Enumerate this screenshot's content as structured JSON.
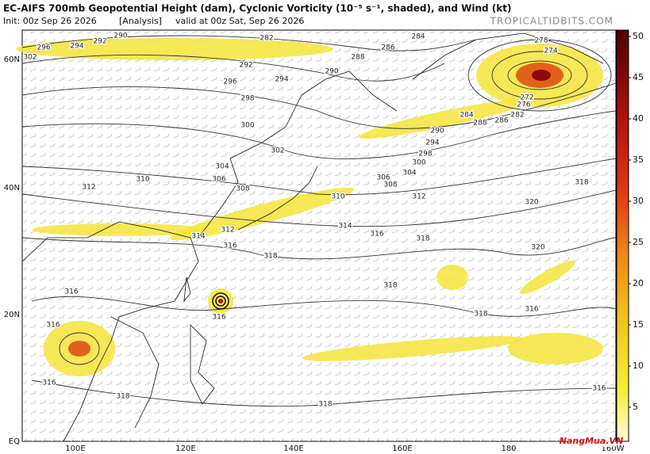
{
  "header": {
    "title": "EC-AIFS 700mb Geopotential Height (dam), Cyclonic Vorticity (10⁻⁵ s⁻¹, shaded), and Wind (kt)",
    "init": "Init: 00z Sep 26 2026",
    "run": "[Analysis]",
    "valid": "valid at 00z Sat, Sep 26 2026",
    "site": "TROPICALTIDBITS.COM"
  },
  "colorbar": {
    "ticks": [
      5,
      10,
      15,
      20,
      25,
      30,
      35,
      40,
      45,
      50
    ]
  },
  "axes": {
    "lat_labels": [
      "60N",
      "40N",
      "20N",
      "EQ"
    ],
    "lon_labels": [
      "100E",
      "120E",
      "140E",
      "160E",
      "180",
      "160W"
    ]
  },
  "map": {
    "contour_labels": [
      "290",
      "292",
      "296",
      "294",
      "302",
      "282",
      "284",
      "286",
      "288",
      "290",
      "292",
      "294",
      "296",
      "298",
      "300",
      "302",
      "304",
      "306",
      "308",
      "310",
      "312",
      "310",
      "306",
      "304",
      "300",
      "298",
      "294",
      "290",
      "288",
      "284",
      "286",
      "282",
      "276",
      "272",
      "278",
      "274",
      "308",
      "312",
      "320",
      "318",
      "314",
      "316",
      "318",
      "320",
      "314",
      "316",
      "318",
      "318",
      "318",
      "316",
      "316",
      "316",
      "316",
      "318",
      "316",
      "318",
      "316",
      "312"
    ]
  },
  "watermark": "NangMua.VN"
}
